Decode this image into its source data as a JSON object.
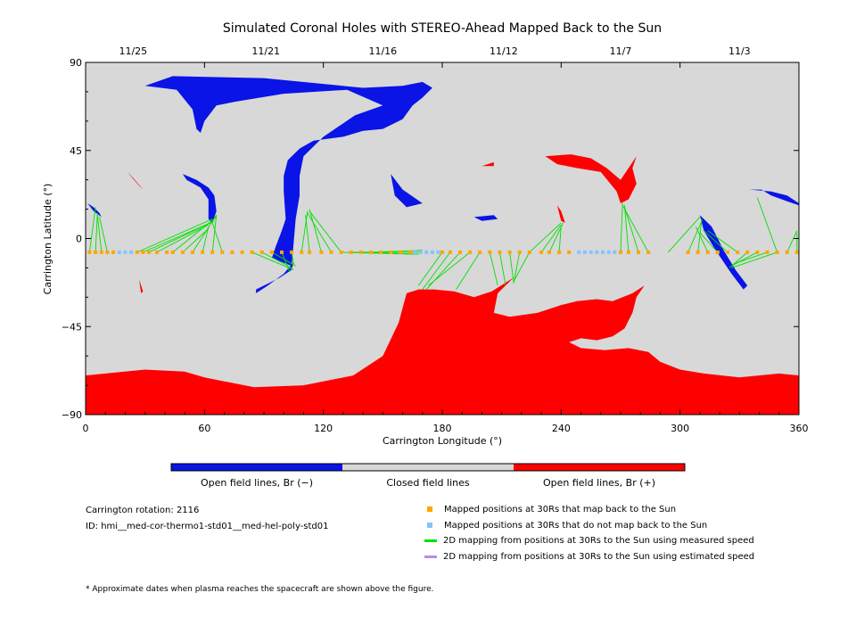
{
  "colors": {
    "negative": "#0a14e6",
    "closed": "#d8d8d8",
    "positive": "#ff0000",
    "mapped": "#ffa500",
    "unmapped": "#87c3ff",
    "measured": "#00e000",
    "estimated": "#b58cf0"
  },
  "chart_data": {
    "type": "map",
    "title": "Simulated Coronal Holes with STEREO-Ahead Mapped Back to the Sun",
    "xlabel": "Carrington Longitude (°)",
    "ylabel": "Carrington Latitude (°)",
    "xlim": [
      0,
      360
    ],
    "ylim": [
      -90,
      90
    ],
    "x_ticks": [
      0,
      60,
      120,
      180,
      240,
      300,
      360
    ],
    "y_ticks": [
      90,
      45,
      0,
      -45,
      -90
    ],
    "top_axis": {
      "ticks": [
        {
          "label": "11/25",
          "lon": 24
        },
        {
          "label": "11/21",
          "lon": 91
        },
        {
          "label": "11/16",
          "lon": 150
        },
        {
          "label": "11/12",
          "lon": 211
        },
        {
          "label": "11/7",
          "lon": 270
        },
        {
          "label": "11/3",
          "lon": 330
        }
      ]
    },
    "series": [
      {
        "name": "Mapped positions at 30Rs that map back to the Sun",
        "lat": -7,
        "lon": [
          2,
          5,
          8,
          11,
          14,
          26,
          29,
          32,
          36,
          41,
          44,
          49,
          54,
          59,
          64,
          69,
          74,
          79,
          84,
          89,
          94,
          99,
          104,
          109,
          113,
          119,
          124,
          129,
          134,
          139,
          144,
          149,
          154,
          159,
          164,
          180,
          184,
          189,
          194,
          199,
          204,
          209,
          214,
          219,
          224,
          230,
          234,
          239,
          244,
          270,
          274,
          279,
          284,
          304,
          309,
          314,
          319,
          324,
          329,
          334,
          339,
          344,
          349,
          354,
          359
        ]
      },
      {
        "name": "Mapped positions at 30Rs that do not map back to the Sun",
        "lat": -7,
        "lon": [
          17,
          20,
          23,
          166,
          169,
          172,
          175,
          178,
          249,
          252,
          255,
          258,
          261,
          264,
          267
        ]
      },
      {
        "name": "2D mapping from positions at 30Rs to the Sun using measured speed",
        "segments": [
          [
            2,
            -7,
            5,
            16
          ],
          [
            5,
            -7,
            6,
            13
          ],
          [
            8,
            -7,
            6,
            12
          ],
          [
            11,
            -7,
            7,
            11
          ],
          [
            26,
            -7,
            64,
            10
          ],
          [
            29,
            -7,
            63,
            8
          ],
          [
            32,
            -7,
            65,
            9
          ],
          [
            36,
            -7,
            62,
            7
          ],
          [
            44,
            -7,
            66,
            11
          ],
          [
            49,
            -7,
            62,
            5
          ],
          [
            54,
            -7,
            66,
            12
          ],
          [
            59,
            -7,
            62,
            6
          ],
          [
            64,
            -7,
            66,
            12
          ],
          [
            69,
            -7,
            64,
            8
          ],
          [
            84,
            -7,
            105,
            -16
          ],
          [
            89,
            -7,
            104,
            -15
          ],
          [
            94,
            -7,
            106,
            -14
          ],
          [
            99,
            -7,
            103,
            -17
          ],
          [
            104,
            -7,
            105,
            -13
          ],
          [
            109,
            -7,
            112,
            14
          ],
          [
            113,
            -7,
            111,
            12
          ],
          [
            119,
            -7,
            113,
            15
          ],
          [
            124,
            -7,
            112,
            13
          ],
          [
            129,
            -7,
            113,
            14
          ],
          [
            134,
            -7,
            170,
            -7
          ],
          [
            139,
            -7,
            168,
            -8
          ],
          [
            129,
            -7,
            165,
            -8
          ],
          [
            144,
            -7,
            170,
            -6
          ],
          [
            180,
            -7,
            168,
            -24
          ],
          [
            184,
            -7,
            170,
            -26
          ],
          [
            189,
            -7,
            172,
            -26
          ],
          [
            194,
            -7,
            173,
            -24
          ],
          [
            199,
            -7,
            187,
            -26
          ],
          [
            204,
            -7,
            208,
            -24
          ],
          [
            209,
            -7,
            212,
            -24
          ],
          [
            214,
            -7,
            216,
            -22
          ],
          [
            219,
            -7,
            216,
            -23
          ],
          [
            224,
            -7,
            216,
            -22
          ],
          [
            224,
            -7,
            240,
            8
          ],
          [
            230,
            -7,
            240,
            7
          ],
          [
            234,
            -7,
            241,
            8
          ],
          [
            239,
            -7,
            240,
            6
          ],
          [
            270,
            -7,
            271,
            18
          ],
          [
            274,
            -7,
            272,
            17
          ],
          [
            279,
            -7,
            272,
            16
          ],
          [
            284,
            -7,
            271,
            17
          ],
          [
            294,
            -7,
            310,
            11
          ],
          [
            304,
            -7,
            311,
            9
          ],
          [
            309,
            -7,
            311,
            10
          ],
          [
            314,
            -7,
            308,
            6
          ],
          [
            319,
            -7,
            310,
            3
          ],
          [
            324,
            -7,
            312,
            4
          ],
          [
            329,
            -7,
            314,
            4
          ],
          [
            334,
            -7,
            325,
            -15
          ],
          [
            339,
            -7,
            326,
            -14
          ],
          [
            344,
            -7,
            327,
            -13
          ],
          [
            349,
            -7,
            326,
            -15
          ],
          [
            349,
            -7,
            339,
            21
          ],
          [
            354,
            -7,
            359,
            4
          ],
          [
            359,
            -7,
            359,
            3
          ]
        ]
      },
      {
        "name": "2D mapping from positions at 30Rs to the Sun using estimated speed",
        "segments": []
      }
    ]
  },
  "colorbar": {
    "labels": [
      "Open field lines, Br (−)",
      "Closed field lines",
      "Open field lines, Br (+)"
    ]
  },
  "info": {
    "rotation": "Carrington rotation: 2116",
    "id": "ID: hmi__med-cor-thermo1-std01__med-hel-poly-std01",
    "footnote": "* Approximate dates when plasma reaches the spacecraft are shown above the figure."
  },
  "legend": [
    {
      "label": "Mapped positions at 30Rs that map back to the Sun",
      "kind": "square",
      "color": "#ffa500"
    },
    {
      "label": "Mapped positions at 30Rs that do not map back to the Sun",
      "kind": "square",
      "color": "#87c3ff"
    },
    {
      "label": "2D mapping from positions at 30Rs to the Sun using measured speed",
      "kind": "line",
      "color": "#00e000"
    },
    {
      "label": "2D mapping from positions at 30Rs to the Sun using estimated speed",
      "kind": "line",
      "color": "#b58cf0"
    }
  ]
}
